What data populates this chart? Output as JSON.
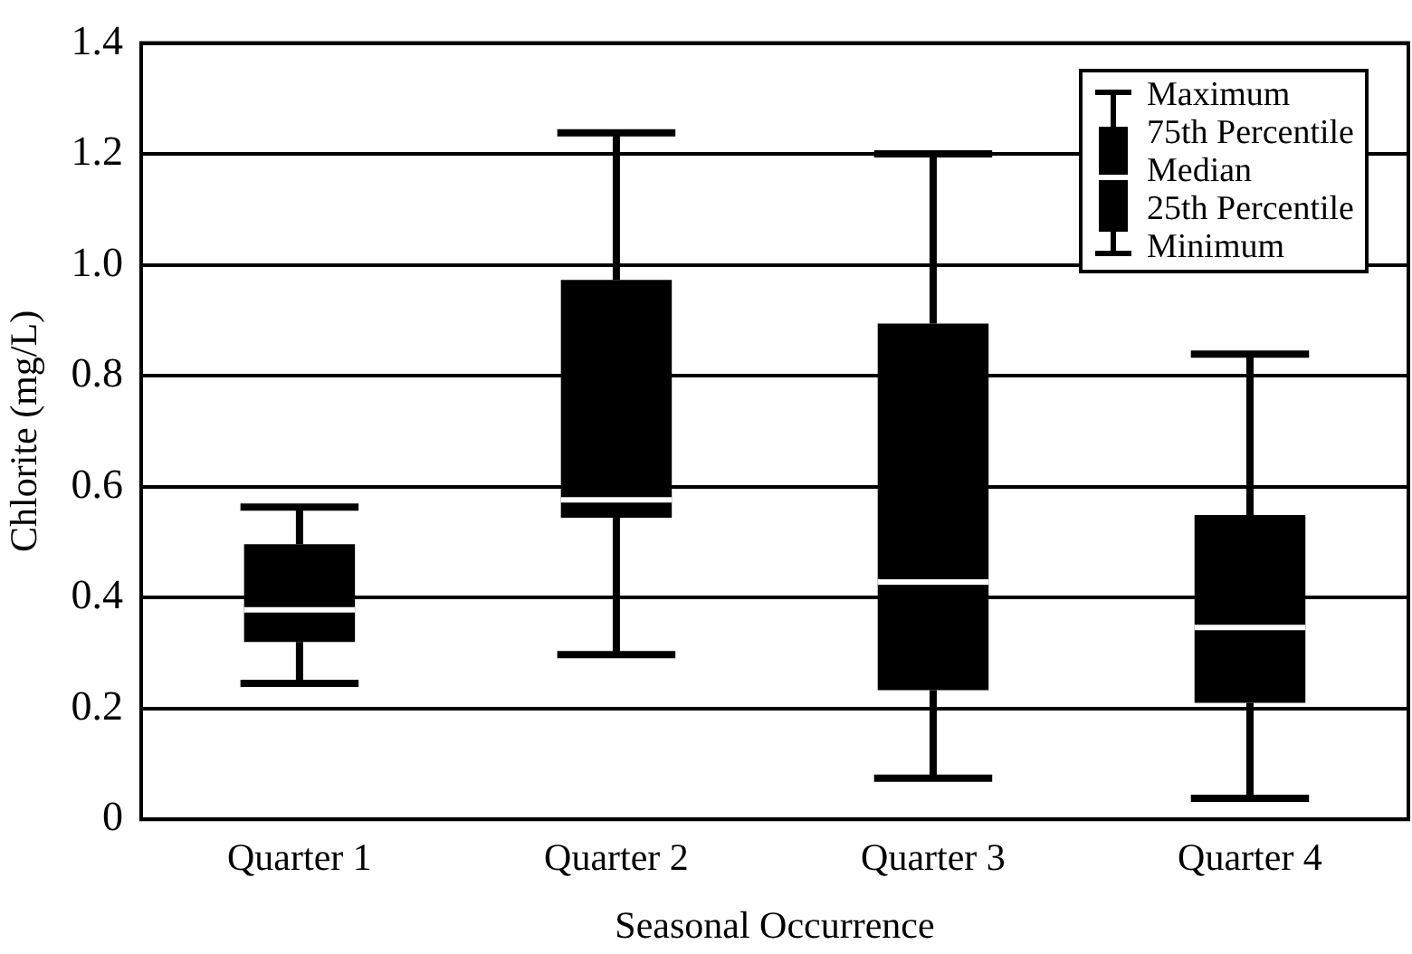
{
  "chart_data": {
    "type": "box",
    "xlabel": "Seasonal Occurrence",
    "ylabel": "Chlorite (mg/L)",
    "categories": [
      "Quarter 1",
      "Quarter 2",
      "Quarter 3",
      "Quarter 4"
    ],
    "series": [
      {
        "color": "#000000",
        "boxes": [
          {
            "low": 0.245,
            "q1": 0.32,
            "median": 0.378,
            "q3": 0.496,
            "high": 0.563
          },
          {
            "low": 0.297,
            "q1": 0.544,
            "median": 0.576,
            "q3": 0.973,
            "high": 1.238
          },
          {
            "low": 0.074,
            "q1": 0.233,
            "median": 0.428,
            "q3": 0.894,
            "high": 1.2
          },
          {
            "low": 0.038,
            "q1": 0.21,
            "median": 0.346,
            "q3": 0.549,
            "high": 0.839
          }
        ]
      }
    ],
    "ylim": [
      0,
      1.4
    ],
    "yticks": [
      0,
      {
        "value": 0.2,
        "label": "0.2"
      },
      {
        "value": 0.4,
        "label": "0.4"
      },
      {
        "value": 0.6,
        "label": "0.6"
      },
      {
        "value": 0.8,
        "label": "0.8"
      },
      {
        "value": 1,
        "label": "1.0"
      },
      {
        "value": 1.2,
        "label": "1.2"
      },
      {
        "value": 1.4,
        "label": "1.4"
      }
    ],
    "grid": "y",
    "annotations": [
      "Maximum",
      "75th Percentile",
      "Median",
      "25th Percentile",
      "Minimum"
    ]
  }
}
